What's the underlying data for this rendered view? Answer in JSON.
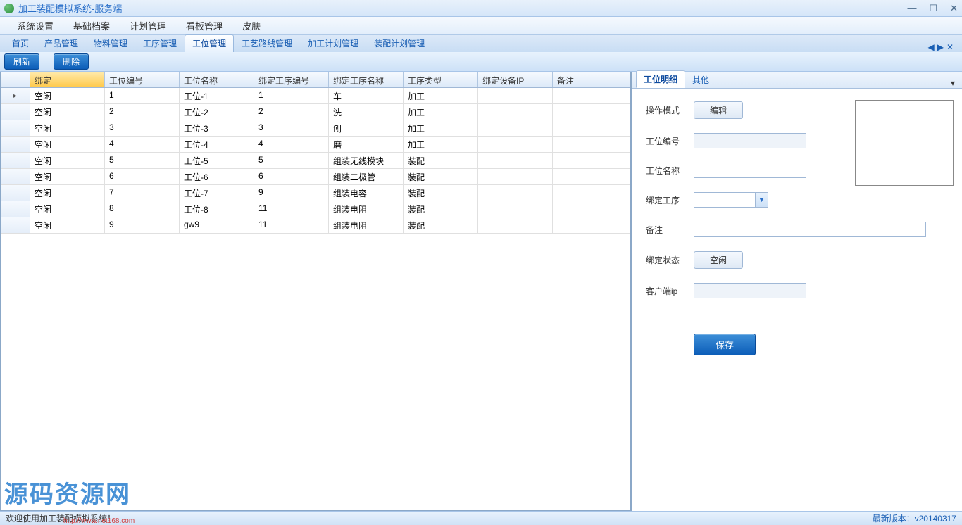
{
  "title": "加工装配模拟系统-服务端",
  "menus": [
    "系统设置",
    "基础档案",
    "计划管理",
    "看板管理",
    "皮肤"
  ],
  "tabs": [
    "首页",
    "产品管理",
    "物料管理",
    "工序管理",
    "工位管理",
    "工艺路线管理",
    "加工计划管理",
    "装配计划管理"
  ],
  "activeTab": 4,
  "toolbar": {
    "refresh": "刷新",
    "delete": "删除"
  },
  "grid": {
    "columns": [
      "",
      "绑定",
      "工位编号",
      "工位名称",
      "绑定工序编号",
      "绑定工序名称",
      "工序类型",
      "绑定设备IP",
      "备注"
    ],
    "rows": [
      [
        "空闲",
        "1",
        "工位-1",
        "1",
        "车",
        "加工",
        "",
        ""
      ],
      [
        "空闲",
        "2",
        "工位-2",
        "2",
        "洗",
        "加工",
        "",
        ""
      ],
      [
        "空闲",
        "3",
        "工位-3",
        "3",
        "刨",
        "加工",
        "",
        ""
      ],
      [
        "空闲",
        "4",
        "工位-4",
        "4",
        "磨",
        "加工",
        "",
        ""
      ],
      [
        "空闲",
        "5",
        "工位-5",
        "5",
        "组装无线模块",
        "装配",
        "",
        ""
      ],
      [
        "空闲",
        "6",
        "工位-6",
        "6",
        "组装二极管",
        "装配",
        "",
        ""
      ],
      [
        "空闲",
        "7",
        "工位-7",
        "9",
        "组装电容",
        "装配",
        "",
        ""
      ],
      [
        "空闲",
        "8",
        "工位-8",
        "11",
        "组装电阻",
        "装配",
        "",
        ""
      ],
      [
        "空闲",
        "9",
        "gw9",
        "11",
        "组装电阻",
        "装配",
        "",
        ""
      ]
    ]
  },
  "side": {
    "tabs": [
      "工位明细",
      "其他"
    ],
    "activeTab": 0,
    "form": {
      "mode_label": "操作模式",
      "mode_btn": "编辑",
      "code_label": "工位编号",
      "code_val": "",
      "name_label": "工位名称",
      "name_val": "",
      "proc_label": "绑定工序",
      "proc_val": "",
      "remark_label": "备注",
      "remark_val": "",
      "bind_label": "绑定状态",
      "bind_btn": "空闲",
      "ip_label": "客户端ip",
      "ip_val": "",
      "save": "保存"
    }
  },
  "status": {
    "welcome": "欢迎使用加工装配模拟系统！",
    "version": "最新版本：v20140317"
  },
  "watermark": "源码资源网",
  "wmurl": "http://www.net168.com"
}
